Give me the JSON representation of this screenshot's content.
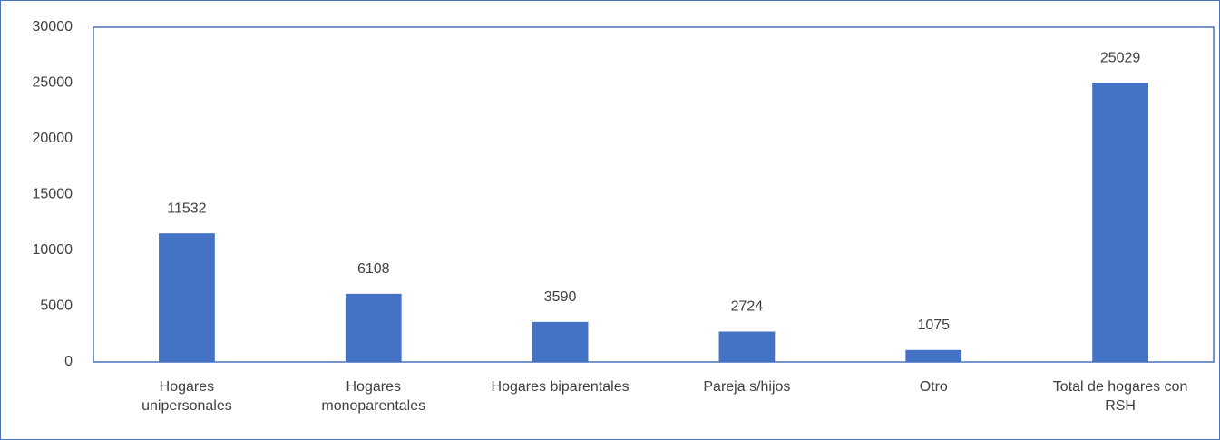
{
  "chart_data": {
    "type": "bar",
    "categories": [
      "Hogares unipersonales",
      "Hogares monoparentales",
      "Hogares biparentales",
      "Pareja s/hijos",
      "Otro",
      "Total de hogares con RSH"
    ],
    "values": [
      11532,
      6108,
      3590,
      2724,
      1075,
      25029
    ],
    "color": "#4472c4",
    "ylim": [
      0,
      30000
    ],
    "yticks": [
      0,
      5000,
      10000,
      15000,
      20000,
      25000,
      30000
    ],
    "grid": false
  }
}
